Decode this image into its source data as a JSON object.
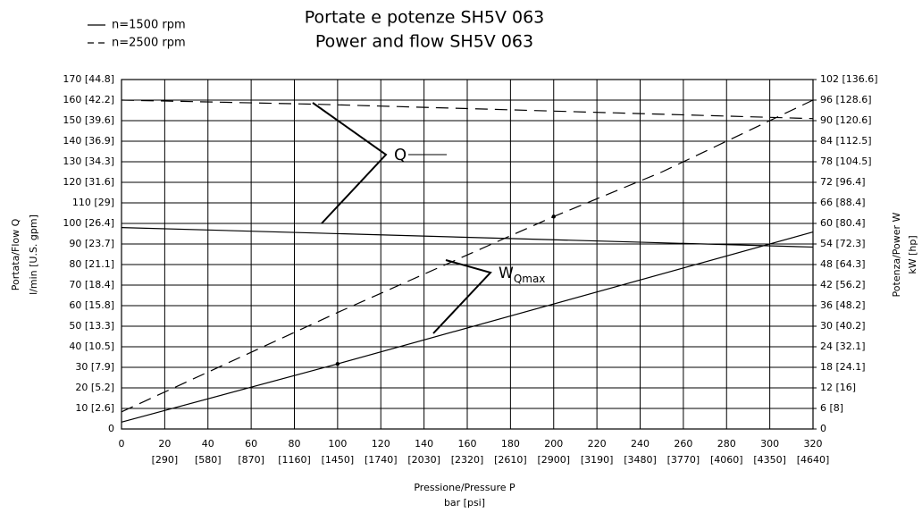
{
  "chart_data": {
    "type": "line",
    "title": "Portate e potenze SH5V 063",
    "subtitle": "Power and flow SH5V 063",
    "xlabel": "Pressione/Pressure P",
    "xlabel_unit": "bar [psi]",
    "ylabel": "Portata/Flow Q",
    "ylabel_unit": "l/min [U.S. gpm]",
    "y2label": "Potenza/Power W",
    "y2label_unit": "kW [hp]",
    "xlim": [
      0,
      320
    ],
    "xticks": [
      0,
      20,
      40,
      60,
      80,
      100,
      120,
      140,
      160,
      180,
      200,
      220,
      240,
      260,
      280,
      300,
      320
    ],
    "xtick_sublabels": [
      "[290]",
      "[580]",
      "[870]",
      "[1160]",
      "[1450]",
      "[1740]",
      "[2030]",
      "[2320]",
      "[2610]",
      "[2900]",
      "[3190]",
      "[3480]",
      "[3770]",
      "[4060]",
      "[4350]",
      "[4640]"
    ],
    "ylim": [
      0,
      170
    ],
    "yticks": [
      0,
      {
        "value": 10,
        "label": "10 [2.6]"
      },
      {
        "value": 20,
        "label": "20 [5.2]"
      },
      {
        "value": 30,
        "label": "30 [7.9]"
      },
      {
        "value": 40,
        "label": "40 [10.5]"
      },
      {
        "value": 50,
        "label": "50 [13.3]"
      },
      {
        "value": 60,
        "label": "60 [15.8]"
      },
      {
        "value": 70,
        "label": "70 [18.4]"
      },
      {
        "value": 80,
        "label": "80 [21.1]"
      },
      {
        "value": 90,
        "label": "90 [23.7]"
      },
      {
        "value": 100,
        "label": "100 [26.4]"
      },
      {
        "value": 110,
        "label": "110 [29]"
      },
      {
        "value": 120,
        "label": "120 [31.6]"
      },
      {
        "value": 130,
        "label": "130 [34.3]"
      },
      {
        "value": 140,
        "label": "140 [36.9]"
      },
      {
        "value": 150,
        "label": "150 [39.6]"
      },
      {
        "value": 160,
        "label": "160 [42.2]"
      },
      {
        "value": 170,
        "label": "170 [44.8]"
      }
    ],
    "y2lim": [
      0,
      102
    ],
    "y2ticks": [
      0,
      {
        "value": 6,
        "label": "6 [8]"
      },
      {
        "value": 12,
        "label": "12 [16]"
      },
      {
        "value": 18,
        "label": "18 [24.1]"
      },
      {
        "value": 24,
        "label": "24 [32.1]"
      },
      {
        "value": 30,
        "label": "30 [40.2]"
      },
      {
        "value": 36,
        "label": "36 [48.2]"
      },
      {
        "value": 42,
        "label": "42 [56.2]"
      },
      {
        "value": 48,
        "label": "48 [64.3]"
      },
      {
        "value": 54,
        "label": "54 [72.3]"
      },
      {
        "value": 60,
        "label": "60 [80.4]"
      },
      {
        "value": 66,
        "label": "66 [88.4]"
      },
      {
        "value": 72,
        "label": "72 [96.4]"
      },
      {
        "value": 78,
        "label": "78 [104.5]"
      },
      {
        "value": 84,
        "label": "84 [112.5]"
      },
      {
        "value": 90,
        "label": "90 [120.6]"
      },
      {
        "value": 96,
        "label": "96 [128.6]"
      },
      {
        "value": 102,
        "label": "102 [136.6]"
      }
    ],
    "grid": true,
    "legend": [
      {
        "name": "n=1500 rpm",
        "dash": "solid"
      },
      {
        "name": "n=2500 rpm",
        "dash": "dashed"
      }
    ],
    "series": [
      {
        "dash": "solid",
        "color": "#000000",
        "axis": "y",
        "x": [
          0,
          320
        ],
        "values": [
          98,
          88.5
        ]
      },
      {
        "dash": "dashed",
        "color": "#000000",
        "axis": "y",
        "x": [
          0,
          90,
          320
        ],
        "values": [
          160,
          158,
          151
        ]
      },
      {
        "dash": "solid",
        "color": "#000000",
        "axis": "y2",
        "x": [
          0,
          100,
          320
        ],
        "values": [
          2,
          19,
          57.5
        ]
      },
      {
        "dash": "dashed",
        "color": "#000000",
        "axis": "y2",
        "x": [
          0,
          100,
          200,
          250,
          320
        ],
        "values": [
          5,
          34,
          62,
          75,
          96
        ]
      }
    ],
    "points": [
      {
        "x": 100,
        "y": 19,
        "axis": "y2"
      },
      {
        "x": 200,
        "y": 62,
        "axis": "y2"
      }
    ],
    "annotations": [
      {
        "text": "Q"
      },
      {
        "text": "W",
        "subscript": "Qmax"
      }
    ]
  }
}
